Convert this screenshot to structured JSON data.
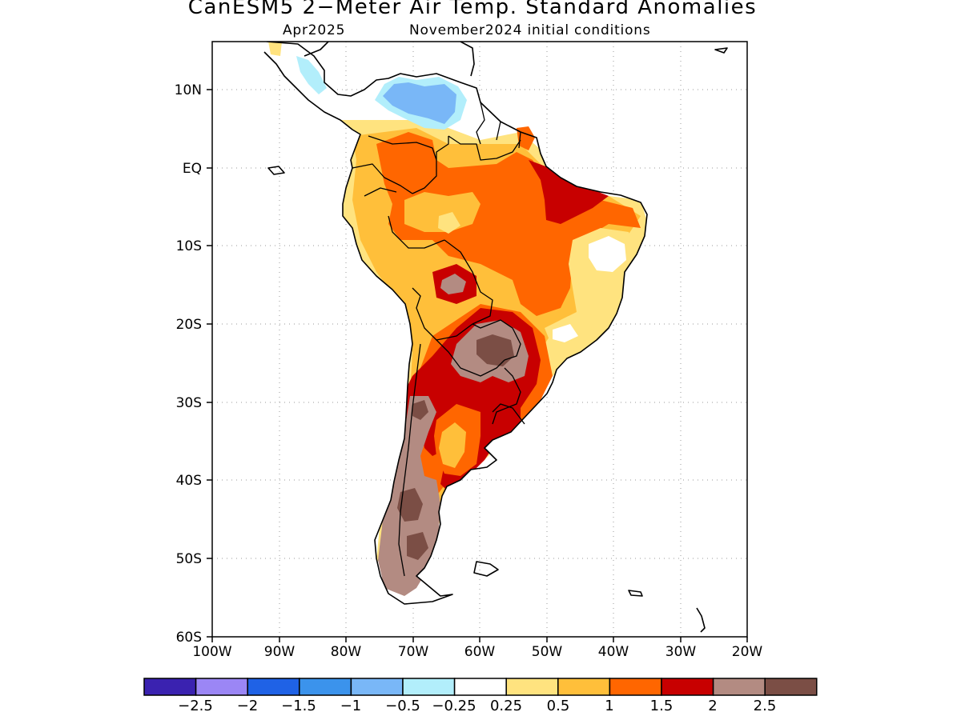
{
  "title": "CanESM5 2−Meter Air Temp. Standard Anomalies",
  "subtitle_month": "Apr2025",
  "subtitle_init": "November2024 initial conditions",
  "axes": {
    "lon_labels": [
      "100W",
      "90W",
      "80W",
      "70W",
      "60W",
      "50W",
      "40W",
      "30W",
      "20W"
    ],
    "lat_labels": [
      "10N",
      "EQ",
      "10S",
      "20S",
      "30S",
      "40S",
      "50S",
      "60S"
    ],
    "lon_range": [
      -100,
      -20
    ],
    "lat_range": [
      -60,
      16
    ],
    "grid": "dotted"
  },
  "colorbar": {
    "colors": [
      "#3a22b0",
      "#9b86f5",
      "#1f62e6",
      "#3b93ec",
      "#79b7f7",
      "#b2eefb",
      "#ffffff",
      "#ffe37f",
      "#ffbf3a",
      "#ff6600",
      "#c80000",
      "#b38b82",
      "#7b4e45"
    ],
    "labels": [
      "−2.5",
      "−2",
      "−1.5",
      "−1",
      "−0.5",
      "−0.25",
      "0.25",
      "0.5",
      "1",
      "1.5",
      "2",
      "2.5"
    ]
  },
  "regions": [
    {
      "name": "Caribbean Venezuela cool",
      "color": "#79b7f7"
    },
    {
      "name": "North Venezuela light cool",
      "color": "#b2eefb"
    },
    {
      "name": "Northwest moderate",
      "color": "#ffe37f"
    },
    {
      "name": "Colombia warm",
      "color": "#ffbf3a"
    },
    {
      "name": "Amazon strong warm",
      "color": "#ff6600"
    },
    {
      "name": "Eastern Amazon very warm",
      "color": "#c80000"
    },
    {
      "name": "Northeast Brazil mild",
      "color": "#ffffff"
    },
    {
      "name": "Southern cone very warm",
      "color": "#c80000"
    },
    {
      "name": "Paraguay extreme",
      "color": "#b38b82"
    },
    {
      "name": "Patagonia extreme",
      "color": "#7b4e45"
    }
  ]
}
